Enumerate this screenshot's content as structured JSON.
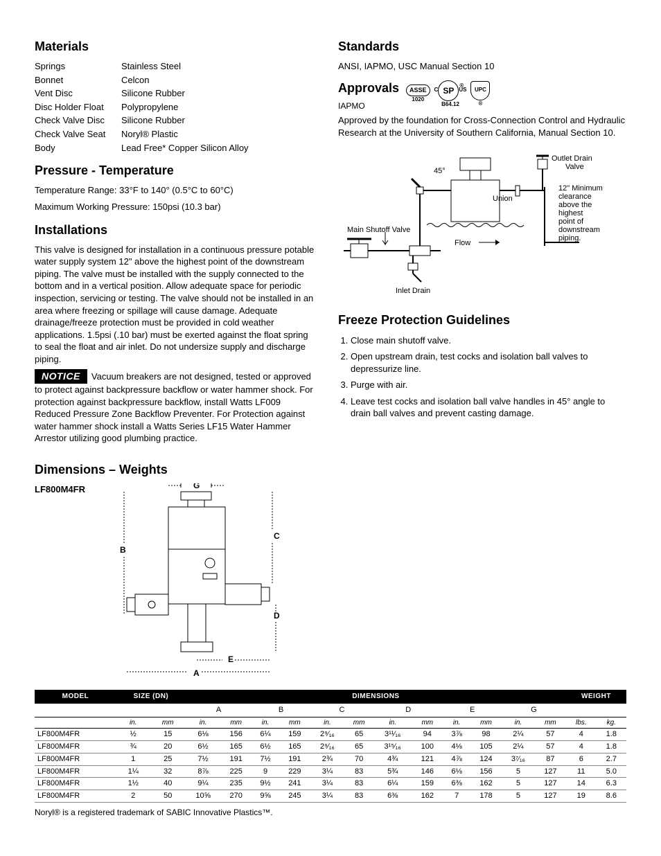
{
  "materials": {
    "heading": "Materials",
    "rows": [
      {
        "label": "Springs",
        "value": "Stainless Steel"
      },
      {
        "label": "Bonnet",
        "value": "Celcon"
      },
      {
        "label": "Vent Disc",
        "value": "Silicone Rubber"
      },
      {
        "label": "Disc Holder Float",
        "value": "Polypropylene"
      },
      {
        "label": "Check Valve Disc",
        "value": "Silicone Rubber"
      },
      {
        "label": "Check Valve Seat",
        "value": "Noryl® Plastic"
      },
      {
        "label": "Body",
        "value": "Lead Free* Copper Silicon Alloy"
      }
    ]
  },
  "pressure": {
    "heading": "Pressure - Temperature",
    "line1": "Temperature Range: 33°F to 140° (0.5°C to 60°C)",
    "line2": "Maximum Working Pressure: 150psi (10.3 bar)"
  },
  "install": {
    "heading": "Installations",
    "body": "This valve is designed for installation in a continuous pressure potable water supply system 12\" above the highest point of the downstream piping. The valve must be installed with the supply connected to the bottom and in a vertical position. Allow adequate space for periodic inspection, servicing or testing. The valve should not be installed in an area where freezing or spillage will cause damage. Adequate drainage/freeze protection must be provided in cold weather applications. 1.5psi (.10 bar) must be exerted against the float spring to seal the float and air inlet. Do not undersize supply and discharge piping.",
    "notice_label": "NOTICE",
    "notice_body": "Vacuum breakers are not designed, tested or approved to protect against backpressure backflow or water hammer shock. For protection against backpressure backflow, install Watts LF009 Reduced Pressure Zone Backflow Preventer. For Protection against water hammer shock install a Watts Series LF15 Water Hammer Arrestor utilizing good plumbing practice."
  },
  "standards": {
    "heading": "Standards",
    "body": "ANSI, IAPMO, USC Manual Section 10"
  },
  "approvals": {
    "heading": "Approvals",
    "sub": "IAPMO",
    "badge1": "ASSE",
    "badge1_sub": "1020",
    "badge2": "SP",
    "badge2_sub": "B64.12",
    "badge2_c": "C",
    "badge2_us": "US",
    "badge3": "UPC",
    "body": "Approved by the foundation for Cross-Connection Control and Hydraulic Research at the University of Southern California, Manual Section 10."
  },
  "diagram": {
    "label_45": "45°",
    "label_union": "Union",
    "label_main": "Main Shutoff Valve",
    "label_flow": "Flow",
    "label_inlet": "Inlet Drain",
    "label_outlet": "Outlet Drain Valve",
    "label_clearance": "12\" Minimum clearance above the highest point of downstream piping."
  },
  "freeze": {
    "heading": "Freeze Protection Guidelines",
    "items": [
      "Close main shutoff valve.",
      "Open upstream drain, test cocks and isolation ball valves to depressurize line.",
      "Purge with air.",
      "Leave test cocks and isolation ball valve handles in 45° angle to drain ball valves and prevent casting damage."
    ]
  },
  "dimensions": {
    "heading": "Dimensions – Weights",
    "model_label": "LF800M4FR",
    "dim_letters": [
      "A",
      "B",
      "C",
      "D",
      "E",
      "G"
    ]
  },
  "table": {
    "header_model": "MODEL",
    "header_size": "SIZE (DN)",
    "header_dimensions": "DIMENSIONS",
    "header_weight": "WEIGHT",
    "dim_groups": [
      "A",
      "B",
      "C",
      "D",
      "E",
      "G"
    ],
    "unit_in": "in.",
    "unit_mm": "mm",
    "unit_lbs": "lbs.",
    "unit_kg": "kg.",
    "rows": [
      {
        "model": "LF800M4FR",
        "size_in": "½",
        "size_mm": "15",
        "A_in": "6⅛",
        "A_mm": "156",
        "B_in": "6¼",
        "B_mm": "159",
        "C_in": "2⁹⁄₁₆",
        "C_mm": "65",
        "D_in": "3¹¹⁄₁₆",
        "D_mm": "94",
        "E_in": "3⅞",
        "E_mm": "98",
        "G_in": "2¼",
        "G_mm": "57",
        "lbs": "4",
        "kg": "1.8"
      },
      {
        "model": "LF800M4FR",
        "size_in": "¾",
        "size_mm": "20",
        "A_in": "6½",
        "A_mm": "165",
        "B_in": "6½",
        "B_mm": "165",
        "C_in": "2⁹⁄₁₆",
        "C_mm": "65",
        "D_in": "3¹⁵⁄₁₆",
        "D_mm": "100",
        "E_in": "4⅛",
        "E_mm": "105",
        "G_in": "2¼",
        "G_mm": "57",
        "lbs": "4",
        "kg": "1.8"
      },
      {
        "model": "LF800M4FR",
        "size_in": "1",
        "size_mm": "25",
        "A_in": "7½",
        "A_mm": "191",
        "B_in": "7½",
        "B_mm": "191",
        "C_in": "2¾",
        "C_mm": "70",
        "D_in": "4¾",
        "D_mm": "121",
        "E_in": "4⅞",
        "E_mm": "124",
        "G_in": "3⁷⁄₁₆",
        "G_mm": "87",
        "lbs": "6",
        "kg": "2.7"
      },
      {
        "model": "LF800M4FR",
        "size_in": "1¼",
        "size_mm": "32",
        "A_in": "8⅞",
        "A_mm": "225",
        "B_in": "9",
        "B_mm": "229",
        "C_in": "3¼",
        "C_mm": "83",
        "D_in": "5¾",
        "D_mm": "146",
        "E_in": "6⅛",
        "E_mm": "156",
        "G_in": "5",
        "G_mm": "127",
        "lbs": "11",
        "kg": "5.0"
      },
      {
        "model": "LF800M4FR",
        "size_in": "1½",
        "size_mm": "40",
        "A_in": "9¼",
        "A_mm": "235",
        "B_in": "9½",
        "B_mm": "241",
        "C_in": "3¼",
        "C_mm": "83",
        "D_in": "6¼",
        "D_mm": "159",
        "E_in": "6⅜",
        "E_mm": "162",
        "G_in": "5",
        "G_mm": "127",
        "lbs": "14",
        "kg": "6.3"
      },
      {
        "model": "LF800M4FR",
        "size_in": "2",
        "size_mm": "50",
        "A_in": "10⅝",
        "A_mm": "270",
        "B_in": "9⅝",
        "B_mm": "245",
        "C_in": "3¼",
        "C_mm": "83",
        "D_in": "6⅜",
        "D_mm": "162",
        "E_in": "7",
        "E_mm": "178",
        "G_in": "5",
        "G_mm": "127",
        "lbs": "19",
        "kg": "8.6"
      }
    ]
  },
  "footnote": "Noryl® is a registered trademark of SABIC Innovative Plastics™."
}
